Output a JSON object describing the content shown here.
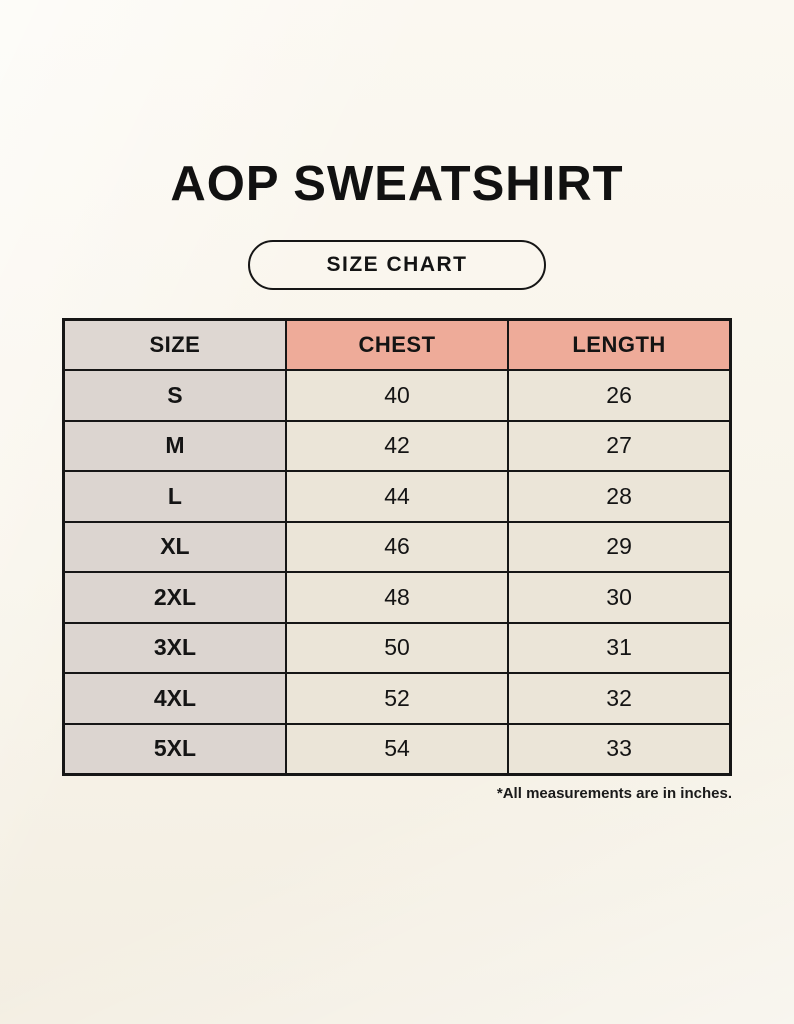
{
  "page": {
    "title": "AOP SWEATSHIRT",
    "badge_label": "SIZE CHART",
    "footnote": "*All measurements are in inches."
  },
  "colors": {
    "background": "#f8f4ea",
    "header_accent": "#eeab99",
    "size_column": "#dcd5d0",
    "data_cell": "#ebe5d8",
    "border": "#161616",
    "text": "#141414"
  },
  "chart_data": {
    "type": "table",
    "title": "AOP SWEATSHIRT — SIZE CHART",
    "units": "inches",
    "columns": [
      "SIZE",
      "CHEST",
      "LENGTH"
    ],
    "rows": [
      {
        "size": "S",
        "chest": 40,
        "length": 26
      },
      {
        "size": "M",
        "chest": 42,
        "length": 27
      },
      {
        "size": "L",
        "chest": 44,
        "length": 28
      },
      {
        "size": "XL",
        "chest": 46,
        "length": 29
      },
      {
        "size": "2XL",
        "chest": 48,
        "length": 30
      },
      {
        "size": "3XL",
        "chest": 50,
        "length": 31
      },
      {
        "size": "4XL",
        "chest": 52,
        "length": 32
      },
      {
        "size": "5XL",
        "chest": 54,
        "length": 33
      }
    ]
  }
}
